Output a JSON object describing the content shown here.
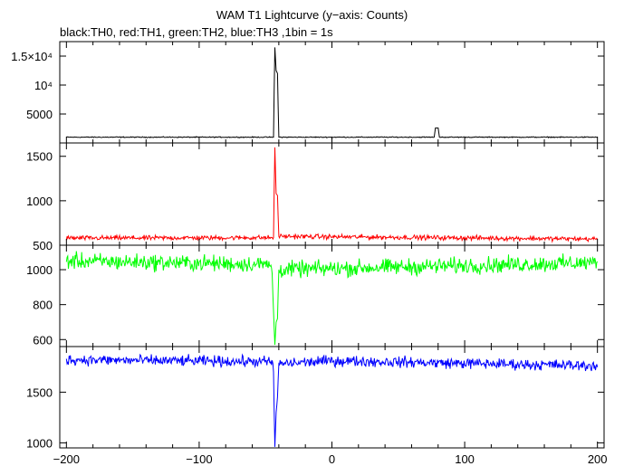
{
  "chart_data": {
    "type": "line",
    "title": "WAM T1 Lightcurve (y−axis: Counts)",
    "subtitle": "black:TH0, red:TH1, green:TH2, blue:TH3 ,1bin = 1s",
    "xlim": [
      -205,
      205
    ],
    "x_ticks": [
      -200,
      -100,
      0,
      100,
      200
    ],
    "x_tick_labels": [
      "−200",
      "−100",
      "0",
      "100",
      "200"
    ],
    "panels": [
      {
        "name": "TH0",
        "color": "#000000",
        "ylim": [
          0,
          17500
        ],
        "y_ticks": [
          5000,
          10000,
          15000
        ],
        "y_tick_labels": [
          "5000",
          "10⁴",
          "1.5×10⁴"
        ],
        "baseline": 1000,
        "noise": 60,
        "points": [
          [
            -200,
            1000
          ],
          [
            -44,
            1000
          ],
          [
            -43,
            16500
          ],
          [
            -42,
            12500
          ],
          [
            -41,
            12000
          ],
          [
            -40,
            1000
          ],
          [
            77,
            1000
          ],
          [
            78,
            2600
          ],
          [
            80,
            2600
          ],
          [
            81,
            1000
          ],
          [
            200,
            1000
          ]
        ]
      },
      {
        "name": "TH1",
        "color": "#ff0000",
        "ylim": [
          500,
          1650
        ],
        "y_ticks": [
          500,
          1000,
          1500
        ],
        "y_tick_labels": [
          "500",
          "1000",
          "1500"
        ],
        "baseline": 580,
        "noise": 20,
        "points": [
          [
            -200,
            580
          ],
          [
            -44,
            585
          ],
          [
            -43,
            1600
          ],
          [
            -42,
            1080
          ],
          [
            -41,
            1060
          ],
          [
            -40,
            600
          ],
          [
            200,
            570
          ]
        ]
      },
      {
        "name": "TH2",
        "color": "#00ff00",
        "ylim": [
          560,
          1140
        ],
        "y_ticks": [
          600,
          800,
          1000
        ],
        "y_tick_labels": [
          "600",
          "800",
          "1000"
        ],
        "baseline": 1060,
        "noise": 35,
        "points": [
          [
            -200,
            1050
          ],
          [
            -46,
            1030
          ],
          [
            -45,
            960
          ],
          [
            -43,
            570
          ],
          [
            -42,
            700
          ],
          [
            -41,
            720
          ],
          [
            -40,
            1000
          ],
          [
            200,
            1040
          ]
        ]
      },
      {
        "name": "TH3",
        "color": "#0000ff",
        "ylim": [
          950,
          1950
        ],
        "y_ticks": [
          1000,
          1500
        ],
        "y_tick_labels": [
          "1000",
          "1500"
        ],
        "baseline": 1820,
        "noise": 40,
        "points": [
          [
            -200,
            1820
          ],
          [
            -45,
            1800
          ],
          [
            -44,
            1700
          ],
          [
            -43,
            960
          ],
          [
            -42,
            1300
          ],
          [
            -41,
            1450
          ],
          [
            -40,
            1780
          ],
          [
            0,
            1810
          ],
          [
            200,
            1760
          ]
        ]
      }
    ]
  }
}
